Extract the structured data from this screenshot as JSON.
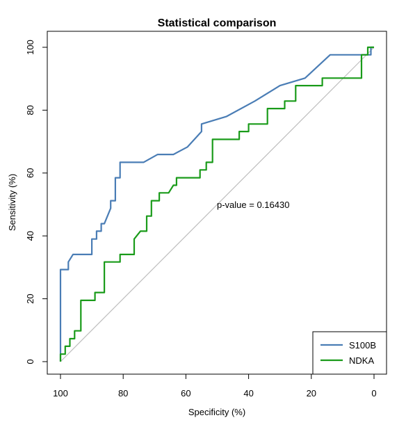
{
  "chart_data": {
    "type": "line",
    "title": "Statistical comparison",
    "xlabel": "Specificity (%)",
    "ylabel": "Sensitivity (%)",
    "xlim": [
      100,
      0
    ],
    "ylim": [
      0,
      100
    ],
    "x_reversed": true,
    "x_ticks": [
      "100",
      "80",
      "60",
      "40",
      "20",
      "0"
    ],
    "y_ticks": [
      "0",
      "20",
      "40",
      "60",
      "80",
      "100"
    ],
    "grid": false,
    "legend_position": "bottom-right",
    "annotation": "p-value = 0.16430",
    "reference_line": {
      "from": [
        100,
        0
      ],
      "to": [
        0,
        100
      ],
      "color": "#bebebe"
    },
    "series": [
      {
        "name": "S100B",
        "color": "#4a7db5",
        "points": [
          [
            100,
            0
          ],
          [
            100,
            29.3
          ],
          [
            97.5,
            29.3
          ],
          [
            97.5,
            31.7
          ],
          [
            96,
            34.1
          ],
          [
            90,
            34.1
          ],
          [
            90,
            39
          ],
          [
            88.5,
            39
          ],
          [
            88.5,
            41.5
          ],
          [
            87,
            41.5
          ],
          [
            87,
            43.9
          ],
          [
            86,
            43.9
          ],
          [
            84,
            48.8
          ],
          [
            84,
            51.2
          ],
          [
            82.5,
            51.2
          ],
          [
            82.5,
            58.5
          ],
          [
            81,
            58.5
          ],
          [
            81,
            63.4
          ],
          [
            73.5,
            63.4
          ],
          [
            69,
            65.9
          ],
          [
            64,
            65.9
          ],
          [
            59.5,
            68.3
          ],
          [
            55,
            73.2
          ],
          [
            55,
            75.6
          ],
          [
            47,
            78
          ],
          [
            38,
            82.9
          ],
          [
            30,
            87.8
          ],
          [
            22,
            90.2
          ],
          [
            14,
            97.6
          ],
          [
            1,
            97.6
          ],
          [
            1,
            100
          ],
          [
            0,
            100
          ]
        ]
      },
      {
        "name": "NDKA",
        "color": "#1a9b1a",
        "points": [
          [
            100,
            0
          ],
          [
            100,
            2.4
          ],
          [
            98.5,
            2.4
          ],
          [
            98.5,
            4.9
          ],
          [
            97,
            4.9
          ],
          [
            97,
            7.3
          ],
          [
            95.5,
            7.3
          ],
          [
            95.5,
            9.8
          ],
          [
            93.5,
            9.8
          ],
          [
            93.5,
            19.5
          ],
          [
            89,
            19.5
          ],
          [
            89,
            22
          ],
          [
            86,
            22
          ],
          [
            86,
            31.7
          ],
          [
            81,
            31.7
          ],
          [
            81,
            34.1
          ],
          [
            76.5,
            34.1
          ],
          [
            76.5,
            39
          ],
          [
            74.5,
            41.5
          ],
          [
            72.5,
            41.5
          ],
          [
            72.5,
            46.3
          ],
          [
            71,
            46.3
          ],
          [
            71,
            51.2
          ],
          [
            68.5,
            51.2
          ],
          [
            68.5,
            53.7
          ],
          [
            65.5,
            53.7
          ],
          [
            64,
            56.1
          ],
          [
            63,
            56.1
          ],
          [
            63,
            58.5
          ],
          [
            55.5,
            58.5
          ],
          [
            55.5,
            61
          ],
          [
            53.5,
            61
          ],
          [
            53.5,
            63.4
          ],
          [
            51.5,
            63.4
          ],
          [
            51.5,
            70.7
          ],
          [
            43,
            70.7
          ],
          [
            43,
            73.2
          ],
          [
            40,
            73.2
          ],
          [
            40,
            75.6
          ],
          [
            34,
            75.6
          ],
          [
            34,
            80.5
          ],
          [
            28.5,
            80.5
          ],
          [
            28.5,
            82.9
          ],
          [
            25,
            82.9
          ],
          [
            25,
            87.8
          ],
          [
            16.5,
            87.8
          ],
          [
            16.5,
            90.2
          ],
          [
            4,
            90.2
          ],
          [
            4,
            97.6
          ],
          [
            2,
            97.6
          ],
          [
            2,
            100
          ],
          [
            0,
            100
          ]
        ]
      }
    ]
  }
}
